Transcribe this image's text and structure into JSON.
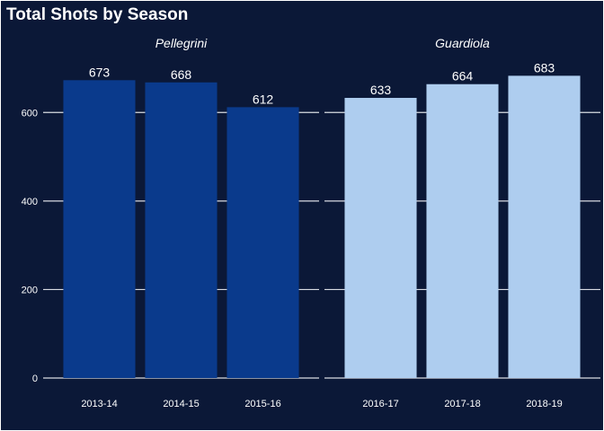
{
  "colors": {
    "background": "#0b1837",
    "panel_border": "#ffffff",
    "gridline": "#d9dce3",
    "text": "#ffffff",
    "pellegrini_bar": "#0a3a8c",
    "guardiola_bar": "#aecdef"
  },
  "chart_data": {
    "type": "bar",
    "title": "Total Shots by Season",
    "xlabel": "",
    "ylabel": "",
    "ylim": [
      0,
      700
    ],
    "y_ticks": [
      0,
      200,
      400,
      600
    ],
    "grid": "horizontal major gridlines",
    "legend": "none",
    "facets": [
      {
        "label": "Pellegrini",
        "color": "#0a3a8c",
        "categories": [
          "2013-14",
          "2014-15",
          "2015-16"
        ],
        "values": [
          673,
          668,
          612
        ]
      },
      {
        "label": "Guardiola",
        "color": "#aecdef",
        "categories": [
          "2016-17",
          "2017-18",
          "2018-19"
        ],
        "values": [
          633,
          664,
          683
        ]
      }
    ]
  }
}
